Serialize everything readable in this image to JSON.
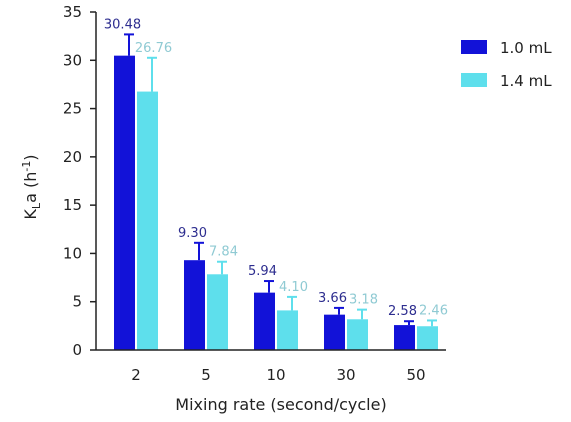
{
  "chart_data": {
    "type": "bar",
    "title": "",
    "xlabel": "Mixing rate (second/cycle)",
    "ylabel_parts": {
      "base": "K",
      "sub": "L",
      "mid": "a (h",
      "sup": "-1",
      "end": ")"
    },
    "categories": [
      "2",
      "5",
      "10",
      "30",
      "50"
    ],
    "series": [
      {
        "name": "1.0 mL",
        "color": "#1212d8",
        "label_color": "#2d2d8f",
        "values": [
          30.48,
          9.3,
          5.94,
          3.66,
          2.58
        ],
        "value_labels": [
          "30.48",
          "9.30",
          "5.94",
          "3.66",
          "2.58"
        ],
        "errors": [
          2.2,
          1.8,
          1.2,
          0.7,
          0.4
        ]
      },
      {
        "name": "1.4 mL",
        "color": "#5edfec",
        "label_color": "#8fcad3",
        "values": [
          26.76,
          7.84,
          4.1,
          3.18,
          2.46
        ],
        "value_labels": [
          "26.76",
          "7.84",
          "4.10",
          "3.18",
          "2.46"
        ],
        "errors": [
          3.5,
          1.3,
          1.4,
          1.0,
          0.6
        ]
      }
    ],
    "ylim": [
      0,
      35
    ],
    "yticks": [
      "0",
      "5",
      "10",
      "15",
      "20",
      "25",
      "30",
      "35"
    ],
    "legend_position": "top-right",
    "grid": false
  }
}
